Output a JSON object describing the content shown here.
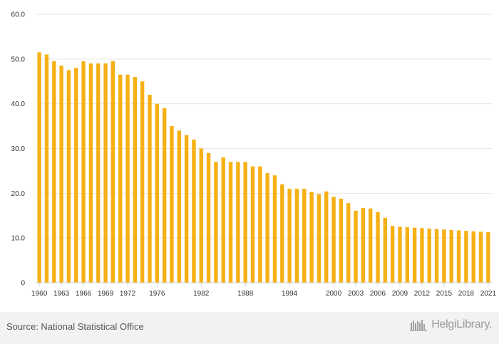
{
  "chart_data": {
    "type": "bar",
    "title": "",
    "xlabel": "",
    "ylabel": "",
    "ylim": [
      0,
      60
    ],
    "yticks": [
      "0",
      "10.0",
      "20.0",
      "30.0",
      "40.0",
      "50.0",
      "60.0"
    ],
    "grid": true,
    "bar_color": "#f5b014",
    "categories": [
      "1960",
      "1961",
      "1962",
      "1963",
      "1964",
      "1965",
      "1966",
      "1967",
      "1968",
      "1969",
      "1970",
      "1971",
      "1972",
      "1973",
      "1974",
      "1975",
      "1976",
      "1977",
      "1978",
      "1979",
      "1980",
      "1981",
      "1982",
      "1983",
      "1984",
      "1985",
      "1986",
      "1987",
      "1988",
      "1989",
      "1990",
      "1991",
      "1992",
      "1993",
      "1994",
      "1995",
      "1996",
      "1997",
      "1998",
      "1999",
      "2000",
      "2001",
      "2002",
      "2003",
      "2004",
      "2005",
      "2006",
      "2007",
      "2008",
      "2009",
      "2010",
      "2011",
      "2012",
      "2013",
      "2014",
      "2015",
      "2016",
      "2017",
      "2018",
      "2019",
      "2020",
      "2021"
    ],
    "x_tick_labels": [
      "1960",
      "1963",
      "1966",
      "1969",
      "1972",
      "1976",
      "1982",
      "1988",
      "1994",
      "2000",
      "2003",
      "2006",
      "2009",
      "2012",
      "2015",
      "2018",
      "2021"
    ],
    "values": [
      51.5,
      51.0,
      49.5,
      48.5,
      47.5,
      48.0,
      49.5,
      49.0,
      49.0,
      49.0,
      49.5,
      46.5,
      46.5,
      46.0,
      45.0,
      42.0,
      40.0,
      39.0,
      35.0,
      34.0,
      33.0,
      32.0,
      30.0,
      29.0,
      27.0,
      28.0,
      27.0,
      27.0,
      27.0,
      26.0,
      26.0,
      24.5,
      24.0,
      22.0,
      21.0,
      21.0,
      21.0,
      20.3,
      19.8,
      20.4,
      19.2,
      18.8,
      17.8,
      16.1,
      16.7,
      16.6,
      15.8,
      14.5,
      12.7,
      12.5,
      12.4,
      12.3,
      12.2,
      12.1,
      12.0,
      11.9,
      11.8,
      11.7,
      11.6,
      11.5,
      11.4,
      11.3
    ]
  },
  "footer": {
    "source": "Source: National Statistical Office",
    "logo_text": "HelgiLibrary."
  }
}
